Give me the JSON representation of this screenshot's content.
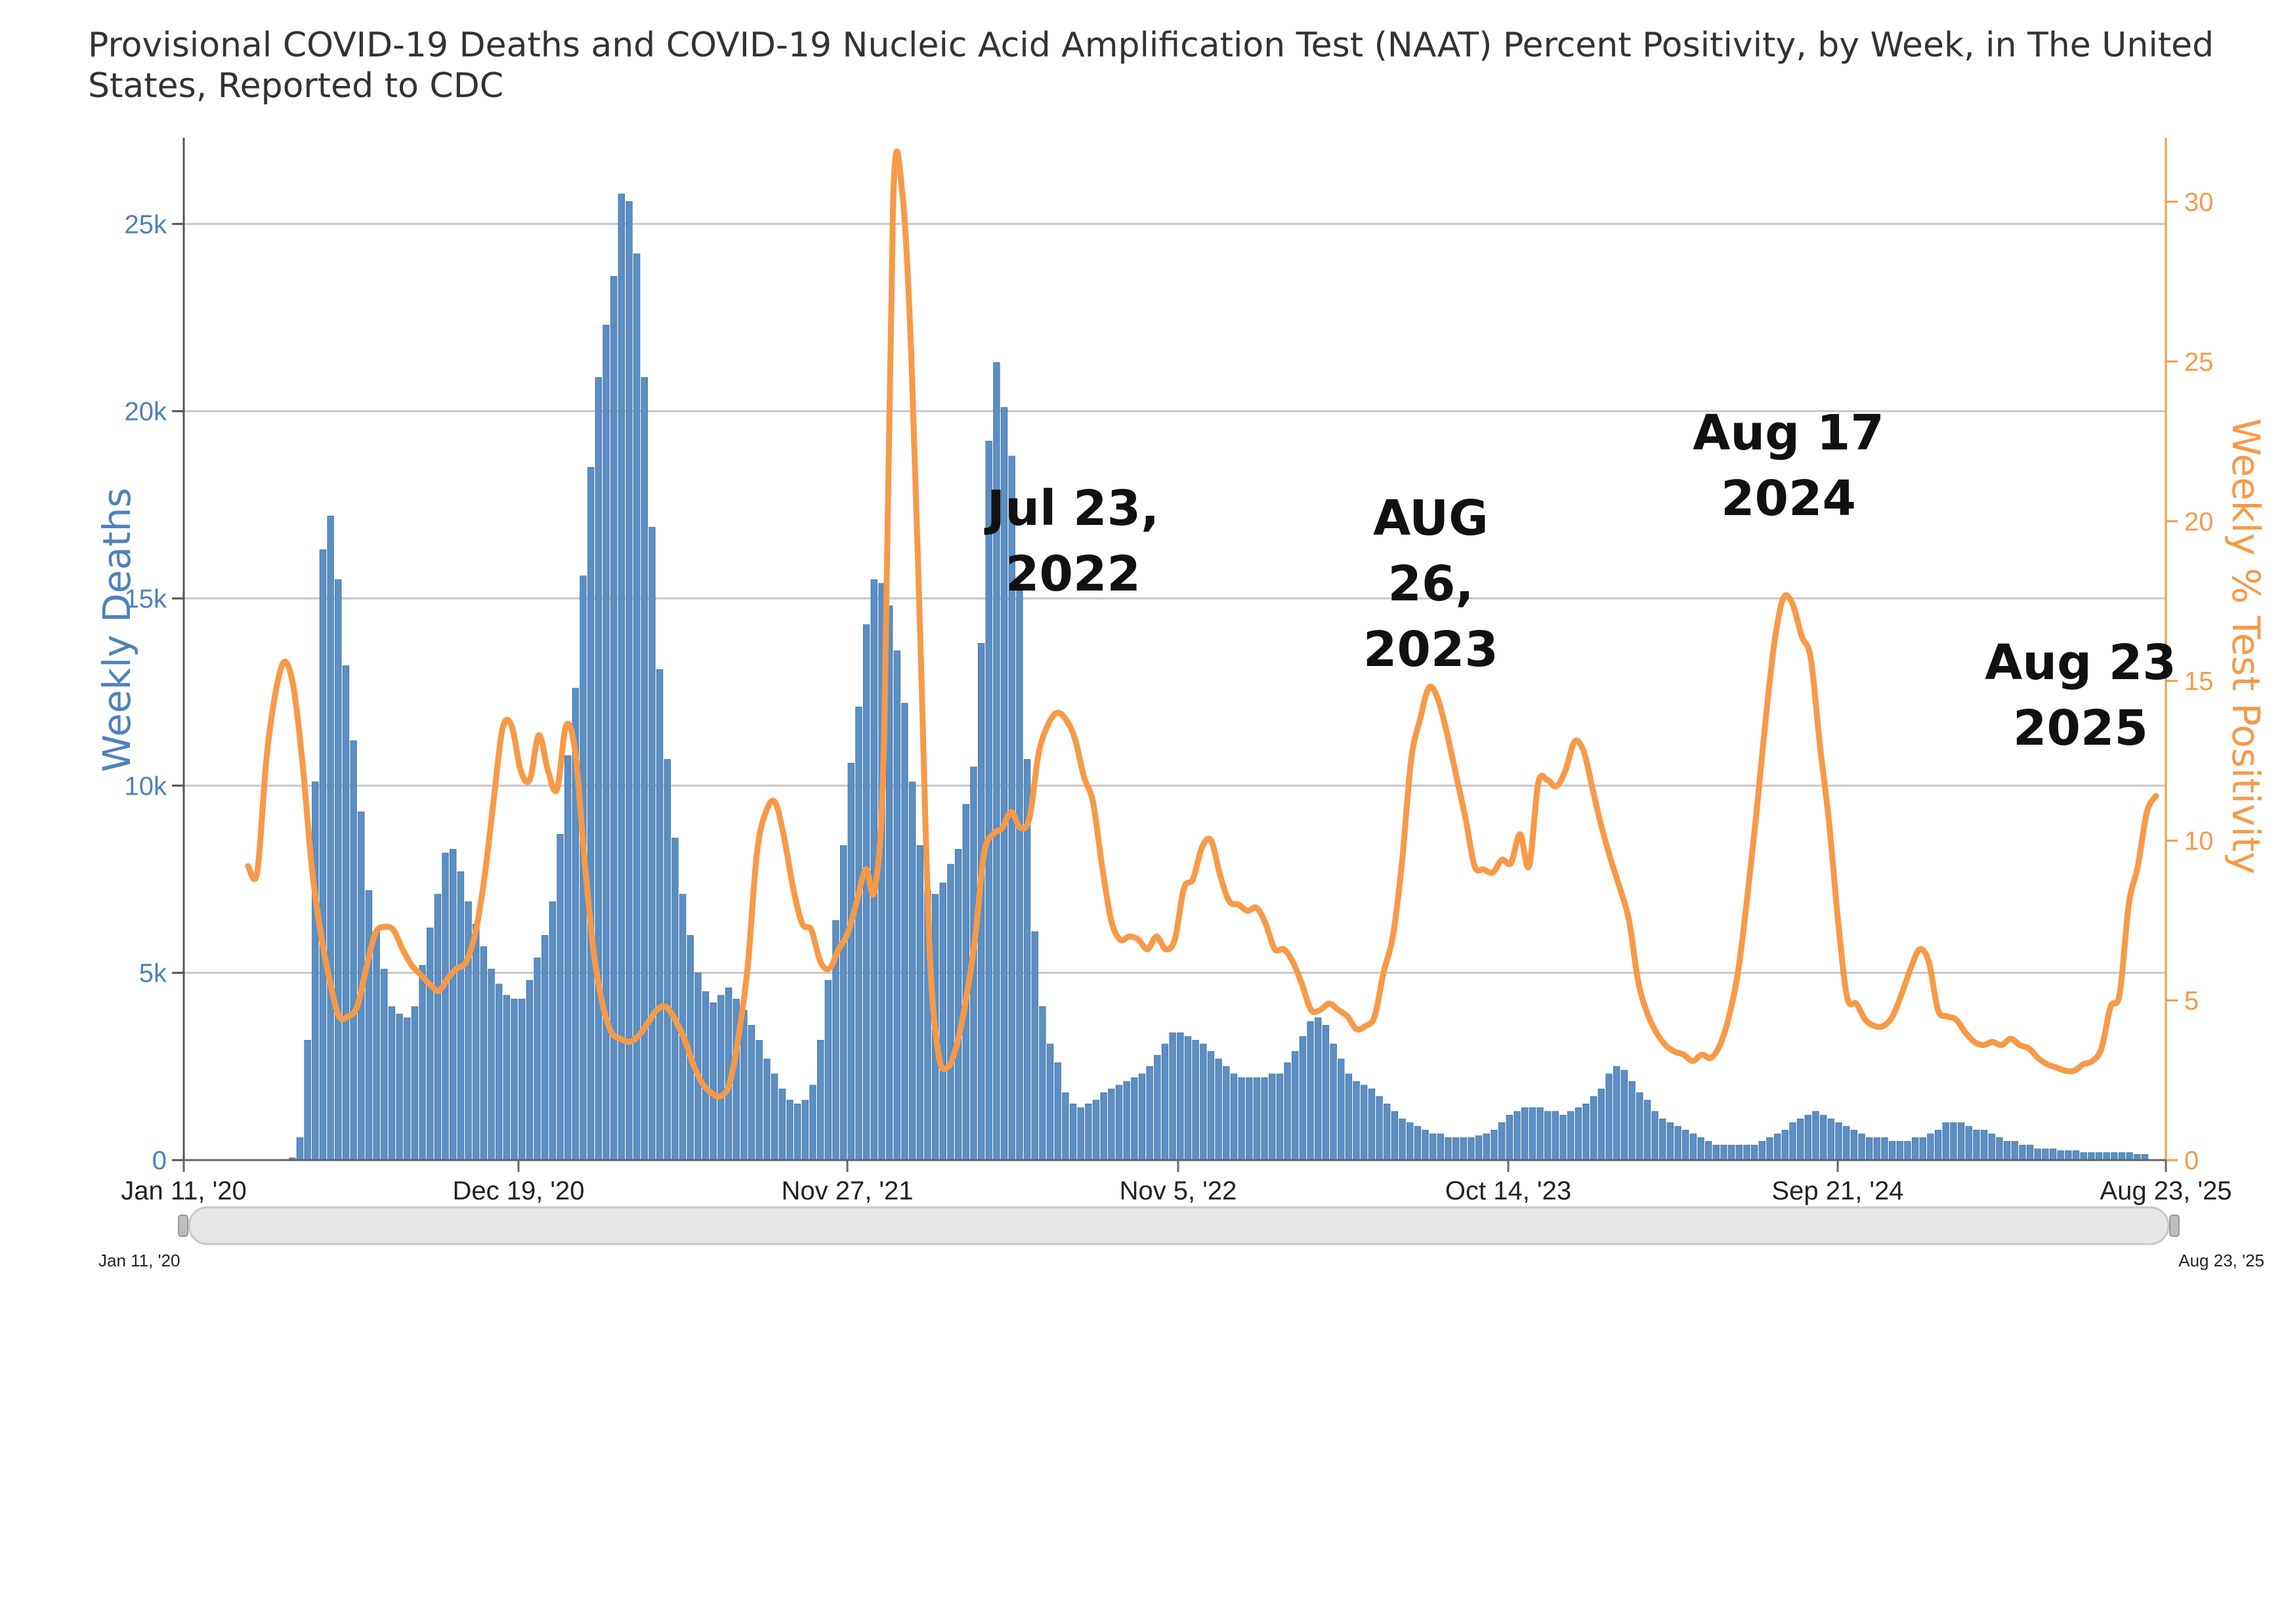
{
  "chart_data": {
    "type": "bar",
    "title": "Provisional COVID-19 Deaths and COVID-19 Nucleic Acid Amplification Test (NAAT) Percent Positivity, by Week, in The United States, Reported to CDC",
    "x_tick_labels": [
      "Jan 11, '20",
      "Dec 19, '20",
      "Nov 27, '21",
      "Nov 5, '22",
      "Oct 14, '23",
      "Sep 21, '24",
      "Aug 23, '25"
    ],
    "navigator_labels": [
      "Jan 11, '20",
      "Aug 23, '25"
    ],
    "y_left": {
      "label": "Weekly Deaths",
      "ticks": [
        "0",
        "5k",
        "10k",
        "15k",
        "20k",
        "25k"
      ],
      "range": [
        0,
        27300
      ],
      "color": "#4f81bd"
    },
    "y_right": {
      "label": "Weekly % Test Positivity",
      "ticks": [
        "0",
        "5",
        "10",
        "15",
        "20",
        "25",
        "30"
      ],
      "range": [
        0,
        32
      ],
      "color": "#f79a48"
    },
    "grid": true,
    "series": [
      {
        "name": "Weekly Deaths",
        "type": "bar",
        "color": "#5b8fc4",
        "values": [
          0,
          0,
          0,
          0,
          0,
          0,
          0,
          20,
          60,
          600,
          3200,
          10100,
          16300,
          17200,
          15500,
          13200,
          11200,
          9300,
          7200,
          6100,
          5100,
          4100,
          3900,
          3800,
          4100,
          5200,
          6200,
          7100,
          8200,
          8300,
          7700,
          6900,
          6300,
          5700,
          5100,
          4700,
          4400,
          4300,
          4300,
          4800,
          5400,
          6000,
          6900,
          8700,
          10800,
          12600,
          15600,
          18500,
          20900,
          22300,
          23600,
          25800,
          25600,
          24200,
          20900,
          16900,
          13100,
          10700,
          8600,
          7100,
          6000,
          5000,
          4500,
          4200,
          4400,
          4600,
          4300,
          4000,
          3600,
          3200,
          2700,
          2300,
          1900,
          1600,
          1500,
          1600,
          2000,
          3200,
          4800,
          6400,
          8400,
          10600,
          12100,
          14300,
          15500,
          15400,
          14800,
          13600,
          12200,
          10100,
          8400,
          7200,
          7100,
          7400,
          7900,
          8300,
          9500,
          10500,
          13800,
          19200,
          21300,
          20100,
          18800,
          15200,
          10700,
          6100,
          4100,
          3100,
          2600,
          1800,
          1500,
          1400,
          1500,
          1600,
          1800,
          1900,
          2000,
          2100,
          2200,
          2300,
          2500,
          2800,
          3100,
          3400,
          3400,
          3300,
          3200,
          3100,
          2900,
          2700,
          2500,
          2300,
          2200,
          2200,
          2200,
          2200,
          2300,
          2300,
          2600,
          2900,
          3300,
          3700,
          3800,
          3600,
          3100,
          2700,
          2300,
          2100,
          2000,
          1900,
          1700,
          1500,
          1300,
          1100,
          1000,
          900,
          800,
          700,
          700,
          600,
          600,
          600,
          600,
          650,
          700,
          800,
          1000,
          1200,
          1300,
          1400,
          1400,
          1400,
          1300,
          1300,
          1200,
          1300,
          1400,
          1500,
          1700,
          1900,
          2300,
          2500,
          2400,
          2100,
          1800,
          1600,
          1300,
          1100,
          1000,
          900,
          800,
          700,
          600,
          500,
          400,
          400,
          400,
          400,
          400,
          400,
          500,
          600,
          700,
          800,
          1000,
          1100,
          1200,
          1300,
          1200,
          1100,
          1000,
          900,
          800,
          700,
          600,
          600,
          600,
          500,
          500,
          500,
          600,
          600,
          700,
          800,
          1000,
          1000,
          1000,
          900,
          800,
          800,
          700,
          600,
          500,
          500,
          400,
          400,
          300,
          300,
          300,
          250,
          250,
          250,
          200,
          200,
          200,
          200,
          200,
          200,
          200,
          150,
          150
        ]
      },
      {
        "name": "Weekly % Test Positivity",
        "type": "line",
        "color": "#f79a48",
        "values": [
          9.2,
          9.0,
          12.5,
          14.6,
          15.6,
          14.8,
          12.4,
          9.2,
          7.1,
          5.6,
          4.5,
          4.5,
          4.8,
          6.0,
          7.1,
          7.3,
          7.2,
          6.6,
          6.1,
          5.8,
          5.5,
          5.3,
          5.7,
          6.0,
          6.2,
          7.1,
          8.8,
          11.2,
          13.5,
          13.6,
          12.2,
          11.9,
          13.3,
          12.2,
          11.6,
          13.6,
          12.8,
          9.5,
          6.6,
          4.9,
          4.0,
          3.8,
          3.7,
          3.9,
          4.3,
          4.7,
          4.8,
          4.4,
          3.8,
          3.0,
          2.4,
          2.1,
          2.0,
          2.4,
          3.9,
          6.1,
          9.6,
          10.9,
          11.2,
          10.1,
          8.5,
          7.4,
          7.2,
          6.2,
          6.0,
          6.6,
          7.1,
          8.1,
          9.1,
          8.5,
          13.1,
          30.0,
          30.3,
          25.2,
          16.2,
          6.7,
          3.3,
          2.9,
          3.6,
          5.0,
          6.9,
          9.6,
          10.2,
          10.4,
          10.9,
          10.4,
          10.7,
          12.7,
          13.6,
          14.0,
          13.8,
          13.2,
          12.0,
          11.2,
          9.2,
          7.5,
          6.9,
          7.0,
          6.9,
          6.6,
          7.0,
          6.6,
          6.9,
          8.5,
          8.8,
          9.8,
          10.0,
          8.9,
          8.1,
          8.0,
          7.8,
          7.9,
          7.4,
          6.6,
          6.6,
          6.2,
          5.5,
          4.7,
          4.7,
          4.9,
          4.7,
          4.5,
          4.1,
          4.2,
          4.5,
          5.9,
          7.0,
          9.3,
          12.5,
          13.8,
          14.8,
          14.4,
          13.3,
          12.0,
          10.7,
          9.2,
          9.1,
          9.0,
          9.4,
          9.3,
          10.2,
          9.2,
          11.8,
          11.9,
          11.7,
          12.2,
          13.1,
          12.8,
          11.6,
          10.4,
          9.4,
          8.5,
          7.5,
          5.6,
          4.6,
          4.0,
          3.6,
          3.4,
          3.3,
          3.1,
          3.3,
          3.2,
          3.6,
          4.5,
          5.9,
          8.2,
          10.8,
          13.7,
          16.2,
          17.6,
          17.4,
          16.4,
          15.7,
          13.0,
          10.6,
          7.5,
          5.1,
          4.9,
          4.4,
          4.2,
          4.2,
          4.5,
          5.2,
          6.0,
          6.6,
          6.2,
          4.7,
          4.5,
          4.4,
          4.0,
          3.7,
          3.6,
          3.7,
          3.6,
          3.8,
          3.6,
          3.5,
          3.2,
          3.0,
          2.9,
          2.8,
          2.8,
          3.0,
          3.1,
          3.5,
          4.8,
          5.2,
          8.0,
          9.2,
          10.9,
          11.4
        ]
      }
    ],
    "annotations": [
      {
        "lines": [
          "Jul 23,",
          "2022"
        ]
      },
      {
        "lines": [
          "AUG",
          "26,",
          "2023"
        ]
      },
      {
        "lines": [
          "Aug 17",
          "2024"
        ]
      },
      {
        "lines": [
          "Aug 23",
          "2025"
        ]
      }
    ]
  }
}
